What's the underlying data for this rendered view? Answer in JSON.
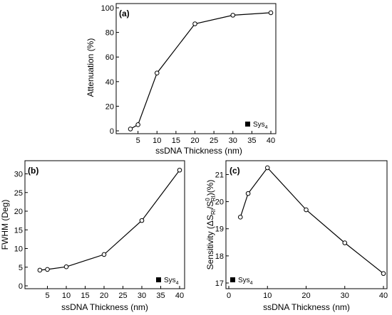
{
  "chart_data": [
    {
      "type": "line",
      "panel_label": "(a)",
      "xlabel": "ssDNA Thickness (nm)",
      "ylabel": "Attenuation (%)",
      "xlim": [
        0,
        40
      ],
      "ylim": [
        0,
        100
      ],
      "xticks": [
        5,
        10,
        15,
        20,
        25,
        30,
        35,
        40
      ],
      "yticks": [
        0,
        20,
        40,
        60,
        80,
        100
      ],
      "grid": false,
      "legend_position": "bottom-right",
      "series": [
        {
          "name": "Sys4",
          "x": [
            3,
            5,
            10,
            20,
            30,
            40
          ],
          "y": [
            1.5,
            5,
            47,
            87,
            94,
            96
          ]
        }
      ]
    },
    {
      "type": "line",
      "panel_label": "(b)",
      "xlabel": "ssDNA Thickness (nm)",
      "ylabel": "FWHM (Deg)",
      "xlim": [
        0,
        40
      ],
      "ylim": [
        0,
        32
      ],
      "xticks": [
        5,
        10,
        15,
        20,
        25,
        30,
        35,
        40
      ],
      "yticks": [
        0,
        5,
        10,
        15,
        20,
        25,
        30
      ],
      "grid": false,
      "legend_position": "bottom-right",
      "series": [
        {
          "name": "Sys4",
          "x": [
            3,
            5,
            10,
            20,
            30,
            40
          ],
          "y": [
            4.2,
            4.4,
            5.1,
            8.4,
            17.5,
            31
          ]
        }
      ]
    },
    {
      "type": "line",
      "panel_label": "(c)",
      "xlabel": "ssDNA Thickness (nm)",
      "ylabel_parts": [
        "Sensitivity (ΔS",
        "RI",
        "/S",
        "0",
        "RI",
        ")(%)"
      ],
      "xlim": [
        0,
        40
      ],
      "ylim": [
        17,
        21.3
      ],
      "xticks": [
        0,
        10,
        20,
        30,
        40
      ],
      "yticks": [
        17,
        18,
        19,
        20,
        21
      ],
      "grid": false,
      "legend_position": "bottom-left",
      "series": [
        {
          "name": "Sys4",
          "x": [
            3,
            5,
            10,
            20,
            30,
            40
          ],
          "y": [
            19.43,
            20.3,
            21.25,
            19.7,
            18.48,
            17.35
          ]
        }
      ]
    }
  ],
  "legend": {
    "sys_base": "Sys",
    "sys_sub": "4"
  },
  "colors": {
    "line": "#000000",
    "marker_fill": "#ffffff",
    "frame": "#000000"
  }
}
